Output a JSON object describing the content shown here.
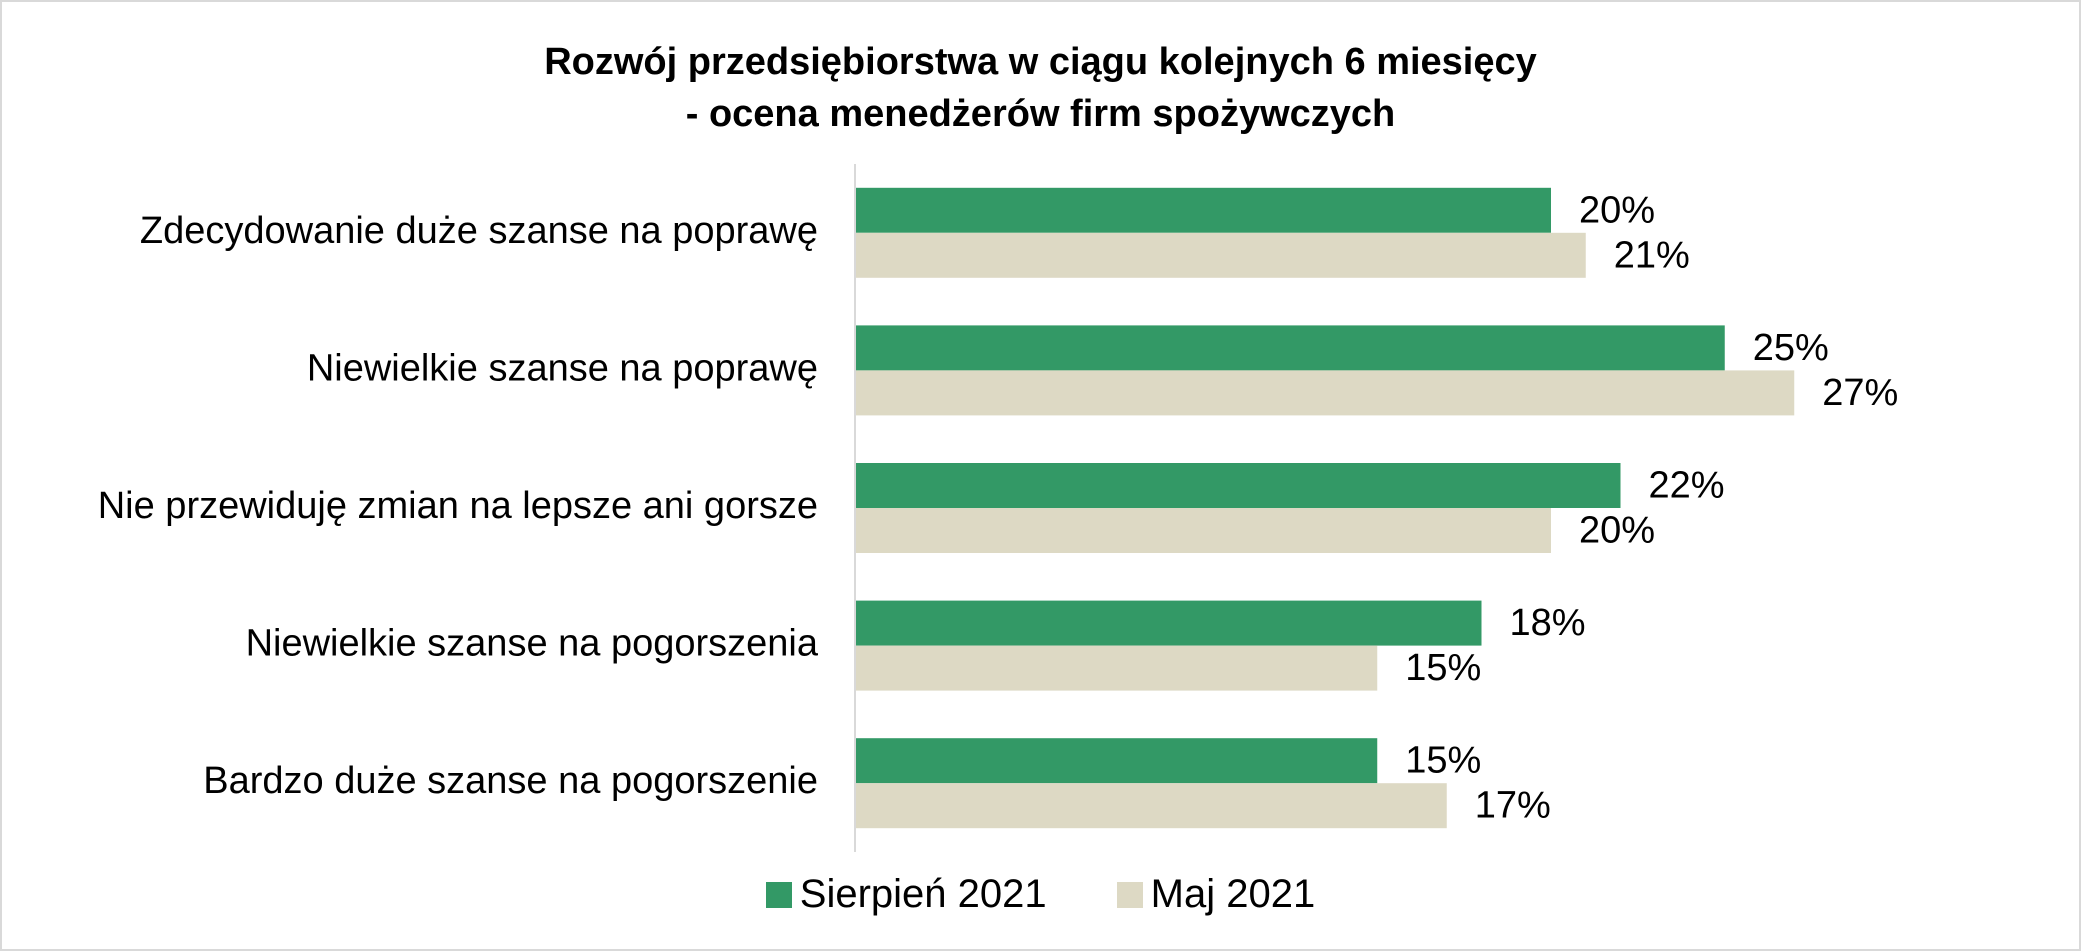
{
  "chart_data": {
    "type": "bar",
    "orientation": "horizontal",
    "title_lines": [
      "Rozwój przedsiębiorstwa w ciągu kolejnych 6 miesięcy",
      "- ocena menedżerów firm spożywczych"
    ],
    "categories": [
      "Zdecydowanie duże szanse na poprawę",
      "Niewielkie szanse na poprawę",
      "Nie przewiduję zmian na lepsze ani gorsze",
      "Niewielkie szanse na pogorszenia",
      "Bardzo duże szanse na pogorszenie"
    ],
    "series": [
      {
        "name": "Sierpień 2021",
        "color": "#339966",
        "values": [
          20,
          25,
          22,
          18,
          15
        ],
        "labels": [
          "20%",
          "25%",
          "22%",
          "18%",
          "15%"
        ]
      },
      {
        "name": "Maj 2021",
        "color": "#ddd9c4",
        "values": [
          21,
          27,
          20,
          15,
          17
        ],
        "labels": [
          "21%",
          "27%",
          "20%",
          "15%",
          "17%"
        ]
      }
    ],
    "xlim": [
      0,
      30
    ],
    "grid": false,
    "legend_position": "bottom",
    "data_labels": true
  }
}
